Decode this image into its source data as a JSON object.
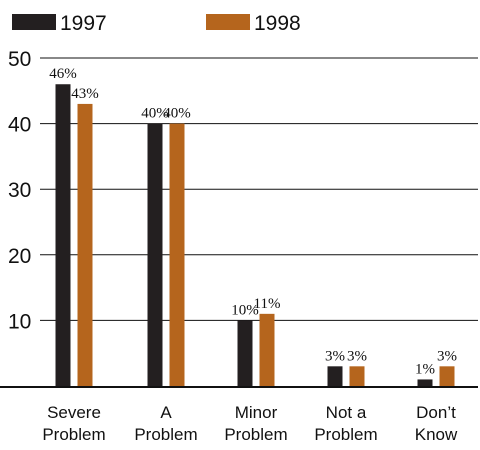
{
  "chart_data": {
    "type": "bar",
    "categories": [
      [
        "Severe",
        "Problem"
      ],
      [
        "A",
        "Problem"
      ],
      [
        "Minor",
        "Problem"
      ],
      [
        "Not a",
        "Problem"
      ],
      [
        "Don’t",
        "Know"
      ]
    ],
    "series": [
      {
        "name": "1997",
        "values": [
          46,
          40,
          10,
          3,
          1
        ],
        "labels": [
          "46%",
          "40%",
          "10%",
          "3%",
          "1%"
        ],
        "color": "#231f20"
      },
      {
        "name": "1998",
        "values": [
          43,
          40,
          11,
          3,
          3
        ],
        "labels": [
          "43%",
          "40%",
          "11%",
          "3%",
          "3%"
        ],
        "color": "#b5651d"
      }
    ],
    "yticks": [
      10,
      20,
      30,
      40,
      50
    ],
    "ylim": [
      0,
      50
    ],
    "grid": true,
    "legend": "top-left",
    "title": "",
    "xlabel": "",
    "ylabel": ""
  }
}
